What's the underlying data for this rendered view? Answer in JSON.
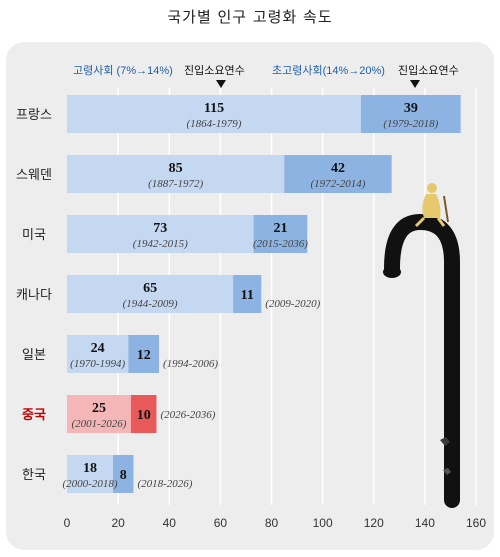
{
  "title": "국가별 인구 고령화 속도",
  "header": {
    "aged_label": "고령사회 (7%→14%)",
    "aged_years_label": "진입소요연수",
    "superaged_label": "초고령사회(14%→20%)",
    "superaged_years_label": "진입소요연수"
  },
  "colors": {
    "aged_bar": "#c5d8f1",
    "superaged_bar": "#8db3e2",
    "highlight_aged_bar": "#f4b6b6",
    "highlight_superaged_bar": "#e85a5a",
    "highlight_label": "#c00000",
    "header_blue": "#1f5fa8"
  },
  "chart_data": {
    "type": "bar",
    "orientation": "horizontal",
    "stacked": true,
    "xlim": [
      0,
      160
    ],
    "xticks": [
      0,
      20,
      40,
      60,
      80,
      100,
      120,
      140,
      160
    ],
    "grid": true,
    "categories": [
      "프랑스",
      "스웨덴",
      "미국",
      "캐나다",
      "일본",
      "중국",
      "한국"
    ],
    "highlight": "중국",
    "series": [
      {
        "name": "고령사회 (7%→14%)",
        "values": [
          115,
          85,
          73,
          65,
          24,
          25,
          18
        ],
        "periods": [
          "(1864-1979)",
          "(1887-1972)",
          "(1942-2015)",
          "(1944-2009)",
          "(1970-1994)",
          "(2001-2026)",
          "(2000-2018)"
        ]
      },
      {
        "name": "초고령사회(14%→20%)",
        "values": [
          39,
          42,
          21,
          11,
          12,
          10,
          8
        ],
        "periods": [
          "(1979-2018)",
          "(1972-2014)",
          "(2015-2036)",
          "(2009-2020)",
          "(1994-2006)",
          "(2026-2036)",
          "(2018-2026)"
        ]
      }
    ]
  }
}
